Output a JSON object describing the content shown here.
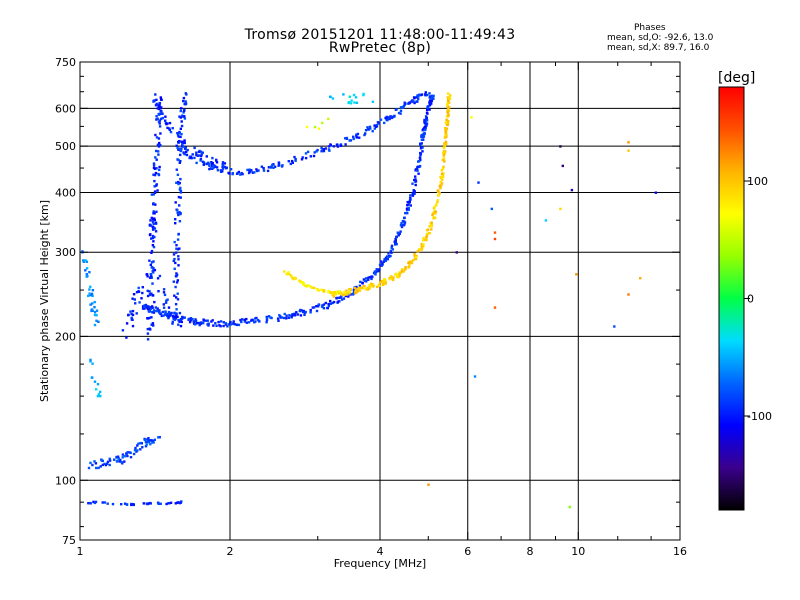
{
  "header": {
    "title": "Tromsø 20151201 11:48:00-11:49:43",
    "subtitle": "RwPretec (8p)",
    "stats_title": "Phases",
    "stats_line1": "mean, sd,O: -92.6, 13.0",
    "stats_line2": "mean, sd,X:  89.7, 16.0"
  },
  "colorbar": {
    "label": "[deg]",
    "range": [
      -180,
      180
    ],
    "ticks": [
      {
        "value": 100,
        "label": "100"
      },
      {
        "value": 0,
        "label": "0"
      },
      {
        "value": -100,
        "label": "-100"
      }
    ],
    "colors": [
      "#000000",
      "#3a008c",
      "#0000ff",
      "#0064ff",
      "#00dcff",
      "#00ff46",
      "#96ff00",
      "#ffff00",
      "#ffb400",
      "#ff5000",
      "#ff0000"
    ]
  },
  "chart_data": {
    "type": "scatter",
    "xlabel": "Frequency [MHz]",
    "ylabel": "Stationary phase Virtual Height [km]",
    "x_scale": "log",
    "y_scale": "log",
    "xlim": [
      1,
      16
    ],
    "ylim": [
      75,
      750
    ],
    "grid": true,
    "x_ticks": [
      {
        "value": 1,
        "label": "1"
      },
      {
        "value": 2,
        "label": "2"
      },
      {
        "value": 4,
        "label": "4"
      },
      {
        "value": 6,
        "label": "6"
      },
      {
        "value": 8,
        "label": "8"
      },
      {
        "value": 10,
        "label": "10"
      },
      {
        "value": 16,
        "label": "16"
      }
    ],
    "x_minor_ticks": [
      3,
      5,
      7,
      9,
      12,
      14
    ],
    "y_ticks": [
      {
        "value": 75,
        "label": "75"
      },
      {
        "value": 100,
        "label": "100"
      },
      {
        "value": 200,
        "label": "200"
      },
      {
        "value": 300,
        "label": "300"
      },
      {
        "value": 400,
        "label": "400"
      },
      {
        "value": 500,
        "label": "500"
      },
      {
        "value": 600,
        "label": "600"
      },
      {
        "value": 750,
        "label": "750"
      }
    ],
    "y_minor_ticks": [
      80,
      90,
      125,
      150,
      175,
      250,
      350,
      450,
      550,
      650,
      700
    ],
    "x_grid": [
      2,
      4,
      6,
      8,
      10
    ],
    "y_grid": [
      100,
      200,
      300,
      400,
      500,
      600
    ],
    "traces": [
      {
        "points": [
          [
            1.33,
            230
          ],
          [
            1.4,
            228
          ],
          [
            1.55,
            219
          ],
          [
            1.75,
            214
          ],
          [
            2.0,
            213
          ],
          [
            2.3,
            216
          ],
          [
            2.7,
            222
          ],
          [
            3.1,
            232
          ],
          [
            3.5,
            247
          ],
          [
            3.9,
            270
          ],
          [
            4.2,
            300
          ],
          [
            4.45,
            345
          ],
          [
            4.65,
            400
          ],
          [
            4.8,
            470
          ],
          [
            4.9,
            540
          ],
          [
            5.0,
            600
          ],
          [
            5.1,
            640
          ]
        ],
        "phase": -92,
        "spread": 0.03,
        "density": 26
      },
      {
        "points": [
          [
            3.2,
            245
          ],
          [
            3.6,
            250
          ],
          [
            4.0,
            258
          ],
          [
            4.4,
            272
          ],
          [
            4.8,
            300
          ],
          [
            5.1,
            350
          ],
          [
            5.3,
            420
          ],
          [
            5.4,
            500
          ],
          [
            5.45,
            570
          ],
          [
            5.5,
            640
          ]
        ],
        "phase": 95,
        "spread": 0.025,
        "density": 30
      },
      {
        "points": [
          [
            2.55,
            275
          ],
          [
            2.8,
            258
          ],
          [
            3.1,
            248
          ],
          [
            3.4,
            246
          ]
        ],
        "phase": 80,
        "spread": 0.015,
        "density": 20
      },
      {
        "points": [
          [
            1.56,
            500
          ],
          [
            1.8,
            455
          ],
          [
            2.05,
            440
          ],
          [
            2.4,
            450
          ],
          [
            2.8,
            475
          ],
          [
            3.3,
            505
          ],
          [
            3.8,
            540
          ],
          [
            4.2,
            575
          ],
          [
            4.6,
            620
          ],
          [
            5.0,
            650
          ]
        ],
        "phase": -92,
        "spread": 0.03,
        "density": 22
      },
      {
        "points": [
          [
            1.4,
            640
          ],
          [
            1.5,
            560
          ],
          [
            1.62,
            500
          ],
          [
            1.8,
            470
          ],
          [
            2.0,
            445
          ]
        ],
        "phase": -95,
        "spread": 0.04,
        "density": 18
      },
      {
        "points": [
          [
            1.38,
            200
          ],
          [
            1.39,
            260
          ],
          [
            1.4,
            340
          ],
          [
            1.42,
            420
          ],
          [
            1.43,
            520
          ],
          [
            1.45,
            640
          ]
        ],
        "phase": -95,
        "spread": 0.06,
        "density": 24
      },
      {
        "points": [
          [
            1.55,
            210
          ],
          [
            1.56,
            280
          ],
          [
            1.57,
            360
          ],
          [
            1.58,
            440
          ],
          [
            1.6,
            560
          ],
          [
            1.62,
            640
          ]
        ],
        "phase": -92,
        "spread": 0.05,
        "density": 20
      },
      {
        "points": [
          [
            1.22,
            200
          ],
          [
            1.3,
            240
          ],
          [
            1.4,
            280
          ],
          [
            1.5,
            230
          ],
          [
            1.6,
            210
          ]
        ],
        "phase": -95,
        "spread": 0.07,
        "density": 18
      },
      {
        "points": [
          [
            1.05,
            108
          ],
          [
            1.15,
            109
          ],
          [
            1.25,
            112
          ],
          [
            1.35,
            120
          ],
          [
            1.45,
            124
          ]
        ],
        "phase": -85,
        "spread": 0.04,
        "density": 18
      },
      {
        "points": [
          [
            1.02,
            300
          ],
          [
            1.04,
            260
          ],
          [
            1.06,
            230
          ],
          [
            1.08,
            215
          ]
        ],
        "phase": -60,
        "spread": 0.05,
        "density": 12
      },
      {
        "points": [
          [
            1.05,
            180
          ],
          [
            1.07,
            160
          ],
          [
            1.1,
            150
          ]
        ],
        "phase": -45,
        "spread": 0.04,
        "density": 6
      },
      {
        "points": [
          [
            1.02,
            90
          ],
          [
            1.3,
            89
          ],
          [
            1.6,
            90
          ]
        ],
        "phase": -95,
        "spread": 0.01,
        "density": 20
      },
      {
        "points": [
          [
            3.1,
            620
          ],
          [
            3.5,
            630
          ],
          [
            3.9,
            635
          ]
        ],
        "phase": -35,
        "spread": 0.05,
        "density": 8
      },
      {
        "points": [
          [
            2.8,
            540
          ],
          [
            3.2,
            560
          ]
        ],
        "phase": 60,
        "spread": 0.05,
        "density": 5
      }
    ],
    "isolated_points": [
      {
        "x": 6.8,
        "y": 330,
        "phase": 140
      },
      {
        "x": 6.8,
        "y": 320,
        "phase": 150
      },
      {
        "x": 6.8,
        "y": 230,
        "phase": 140
      },
      {
        "x": 6.7,
        "y": 370,
        "phase": -75
      },
      {
        "x": 6.3,
        "y": 420,
        "phase": -90
      },
      {
        "x": 9.3,
        "y": 455,
        "phase": -150
      },
      {
        "x": 9.7,
        "y": 405,
        "phase": -130
      },
      {
        "x": 9.2,
        "y": 500,
        "phase": -160
      },
      {
        "x": 12.6,
        "y": 510,
        "phase": 120
      },
      {
        "x": 12.6,
        "y": 490,
        "phase": 100
      },
      {
        "x": 12.6,
        "y": 245,
        "phase": 130
      },
      {
        "x": 14.3,
        "y": 400,
        "phase": -110
      },
      {
        "x": 9.9,
        "y": 270,
        "phase": 120
      },
      {
        "x": 8.6,
        "y": 350,
        "phase": -40
      },
      {
        "x": 9.2,
        "y": 370,
        "phase": 90
      },
      {
        "x": 9.6,
        "y": 88,
        "phase": 30
      },
      {
        "x": 11.8,
        "y": 210,
        "phase": -80
      },
      {
        "x": 13.3,
        "y": 265,
        "phase": 110
      },
      {
        "x": 6.2,
        "y": 165,
        "phase": -60
      },
      {
        "x": 5.7,
        "y": 300,
        "phase": -150
      },
      {
        "x": 5.0,
        "y": 98,
        "phase": 120
      },
      {
        "x": 6.1,
        "y": 575,
        "phase": 70
      }
    ]
  }
}
